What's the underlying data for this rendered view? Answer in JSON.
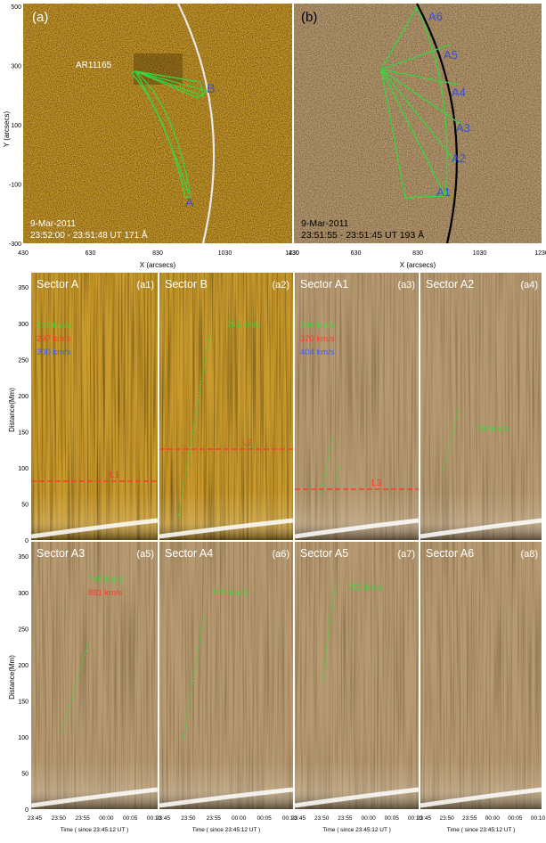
{
  "colors": {
    "aia_orange": "#c99a2c",
    "diff_tan": "#b79a72",
    "sector_green": "#3fcf3f",
    "speed_green": "#3fd23f",
    "speed_red": "#ff3a2a",
    "speed_blue": "#3a5cff",
    "label_blue": "#3a4fd8",
    "limb_white": "#e8e8e8",
    "limb_black": "#000000"
  },
  "top_panels": [
    {
      "tag": "(a)",
      "ar_label": "AR11165",
      "sector_labels": [
        "A",
        "B"
      ],
      "date": "9-Mar-2011",
      "time": "23:52:00 - 23:51:48 UT 171 Å"
    },
    {
      "tag": "(b)",
      "sector_labels": [
        "A1",
        "A2",
        "A3",
        "A4",
        "A5",
        "A6"
      ],
      "date": "9-Mar-2011",
      "time": "23:51:55 - 23:51:45 UT 193 Å"
    }
  ],
  "top_axes": {
    "y_label": "Y (arcsecs)",
    "x_label": "X (arcsecs)",
    "y_ticks": [
      "500",
      "300",
      "100",
      "-100",
      "-300"
    ],
    "x_ticks": [
      "430",
      "630",
      "830",
      "1030",
      "1230"
    ]
  },
  "td_axes": {
    "y_label": "Distance(Mm)",
    "y_ticks": [
      "350",
      "300",
      "250",
      "200",
      "150",
      "100",
      "50",
      "0"
    ],
    "x_ticks": [
      "23:45",
      "23:50",
      "23:55",
      "00:00",
      "00:05",
      "00:10"
    ],
    "x_label": "Time ( since 23:45:12 UT )"
  },
  "td_panels": [
    {
      "sector": "Sector A",
      "tag": "(a1)",
      "speeds": [
        {
          "text": "313 km/s",
          "color": "green"
        },
        {
          "text": "297 km/s",
          "color": "red"
        },
        {
          "text": "300 km/s",
          "color": "blue"
        }
      ],
      "lobe_label": "L1"
    },
    {
      "sector": "Sector B",
      "tag": "(a2)",
      "speeds": [
        {
          "text": "793 km/s",
          "color": "green"
        }
      ],
      "lobe_label": "L2"
    },
    {
      "sector": "Sector A1",
      "tag": "(a3)",
      "speeds": [
        {
          "text": "396 km/s",
          "color": "green"
        },
        {
          "text": "370 km/s",
          "color": "red"
        },
        {
          "text": "404 km/s",
          "color": "blue"
        }
      ],
      "lobe_label": "L3"
    },
    {
      "sector": "Sector A2",
      "tag": "(a4)",
      "speeds": [
        {
          "text": "720 km/s",
          "color": "green"
        }
      ],
      "lobe_label": ""
    },
    {
      "sector": "Sector A3",
      "tag": "(a5)",
      "speeds": [
        {
          "text": "745 km/s",
          "color": "green"
        },
        {
          "text": "881 km/s",
          "color": "red"
        }
      ],
      "lobe_label": ""
    },
    {
      "sector": "Sector A4",
      "tag": "(a6)",
      "speeds": [
        {
          "text": "882 km/s",
          "color": "green"
        }
      ],
      "lobe_label": ""
    },
    {
      "sector": "Sector A5",
      "tag": "(a7)",
      "speeds": [
        {
          "text": "712 km/s",
          "color": "green"
        }
      ],
      "lobe_label": ""
    },
    {
      "sector": "Sector A6",
      "tag": "(a8)",
      "speeds": [],
      "lobe_label": ""
    }
  ]
}
